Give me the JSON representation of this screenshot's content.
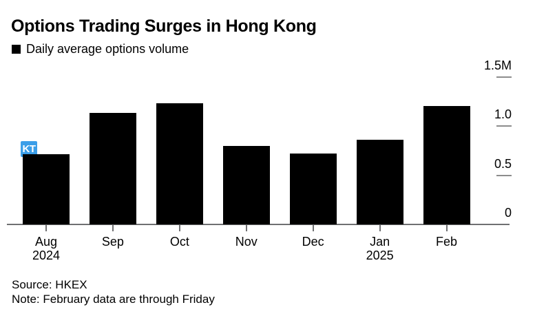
{
  "header": {
    "title": "Options Trading Surges in Hong Kong",
    "legend": {
      "label": "Daily average options volume",
      "swatch_color": "#000000"
    }
  },
  "chart_data": {
    "type": "bar",
    "title": "Options Trading Surges in Hong Kong",
    "series_name": "Daily average options volume",
    "categories": [
      "Aug 2024",
      "Sep",
      "Oct",
      "Nov",
      "Dec",
      "Jan 2025",
      "Feb"
    ],
    "values": [
      0.71,
      1.13,
      1.23,
      0.8,
      0.72,
      0.86,
      1.2
    ],
    "unit": "M",
    "x_tick_labels": [
      {
        "line1": "Aug",
        "line2": "2024"
      },
      {
        "line1": "Sep",
        "line2": ""
      },
      {
        "line1": "Oct",
        "line2": ""
      },
      {
        "line1": "Nov",
        "line2": ""
      },
      {
        "line1": "Dec",
        "line2": ""
      },
      {
        "line1": "Jan",
        "line2": "2025"
      },
      {
        "line1": "Feb",
        "line2": ""
      }
    ],
    "yticks": [
      {
        "label": "1.5M",
        "value": 1.5
      },
      {
        "label": "1.0",
        "value": 1.0
      },
      {
        "label": "0.5",
        "value": 0.5
      },
      {
        "label": "0",
        "value": 0
      }
    ],
    "ylim": [
      0,
      1.5
    ],
    "xlabel": "",
    "ylabel": "",
    "grid": false,
    "legend_position": "top-left",
    "bar_color": "#000000",
    "axis_line_color": "#6f7072",
    "tick_dash_color": "#8c8c8c"
  },
  "overlay": {
    "badge_text": "KT",
    "badge_color": "#3b9ee8"
  },
  "footer": {
    "source": "Source: HKEX",
    "note": "Note: February data are through Friday"
  }
}
